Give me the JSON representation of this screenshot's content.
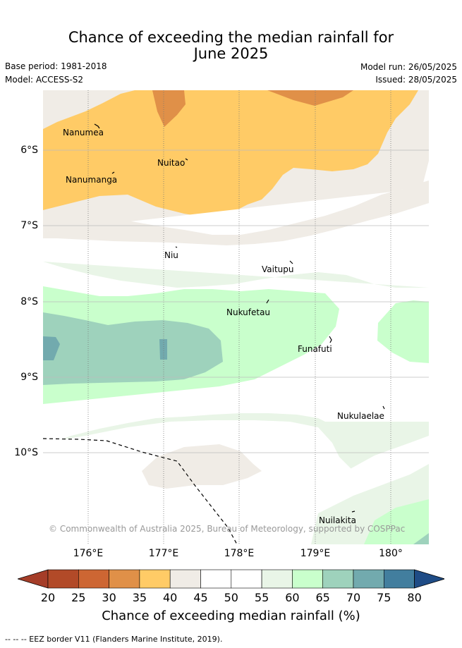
{
  "title_line1": "Chance of exceeding the median rainfall for",
  "title_line2": "June 2025",
  "base_period": "Base period: 1981-2018",
  "model": "Model: ACCESS-S2",
  "model_run": "Model run: 26/05/2025",
  "issued": "Issued: 28/05/2025",
  "latitude_labels": [
    "6°S",
    "7°S",
    "8°S",
    "9°S",
    "10°S"
  ],
  "longitude_labels": [
    "176°E",
    "177°E",
    "178°E",
    "179°E",
    "180°"
  ],
  "islands": [
    "Nanumea",
    "Nuitao",
    "Nanumanga",
    "Niu",
    "Vaitupu",
    "Nukufetau",
    "Funafuti",
    "Nukulaelae",
    "Nuilakita"
  ],
  "copyright": "© Commonwealth of Australia 2025, Bureau of Meteorology, supported by COSPPac",
  "colorbar": {
    "ticks": [
      "20",
      "25",
      "30",
      "35",
      "40",
      "45",
      "50",
      "55",
      "60",
      "65",
      "70",
      "75",
      "80"
    ],
    "colors": [
      "#b24a28",
      "#cd6633",
      "#e09048",
      "#ffcb66",
      "#f0ece6",
      "#ffffff",
      "#ffffff",
      "#e9f5e7",
      "#c9ffcc",
      "#9ed2bc",
      "#72aaae",
      "#427e9e"
    ],
    "below_color": "#a53d28",
    "above_color": "#1f4c86",
    "label": "Chance of exceeding median rainfall (%)"
  },
  "footer": "-- -- -- EEZ border V11 (Flanders Marine Institute, 2019)."
}
